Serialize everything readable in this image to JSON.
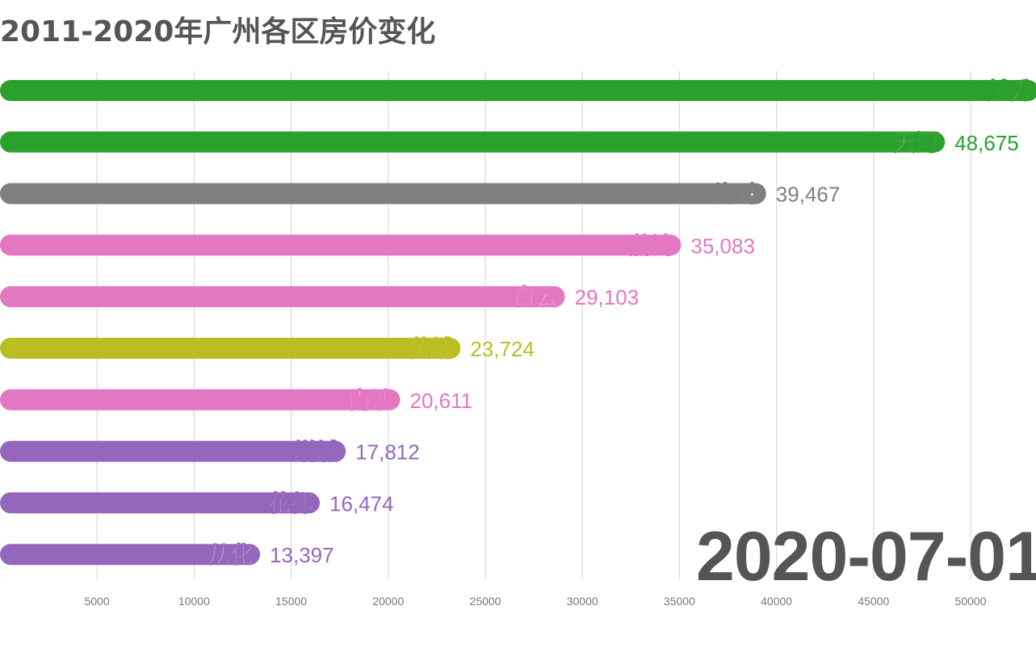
{
  "title": "2011-2020年广州各区房价变化",
  "date": "2020-07-01",
  "chart_data": {
    "type": "bar",
    "orientation": "horizontal",
    "title": "2011-2020年广州各区房价变化",
    "xlabel": "",
    "ylabel": "",
    "xlim": [
      0,
      52000
    ],
    "xticks": [
      5000,
      10000,
      15000,
      20000,
      25000,
      30000,
      35000,
      40000,
      45000,
      50000
    ],
    "grid": true,
    "categories": [
      "越秀",
      "天河",
      "海珠",
      "荔湾",
      "白云",
      "黄埔",
      "南沙",
      "增城",
      "花都",
      "从化"
    ],
    "values": [
      53500,
      48675,
      39467,
      35083,
      29103,
      23724,
      20611,
      17812,
      16474,
      13397
    ],
    "value_labels": [
      "",
      "48,675",
      "39,467",
      "35,083",
      "29,103",
      "23,724",
      "20,611",
      "17,812",
      "16,474",
      "13,397"
    ],
    "colors": [
      "#2ca02c",
      "#2ca02c",
      "#7f7f7f",
      "#e377c2",
      "#e377c2",
      "#bcbd22",
      "#e377c2",
      "#9467bd",
      "#9467bd",
      "#9467bd"
    ]
  }
}
